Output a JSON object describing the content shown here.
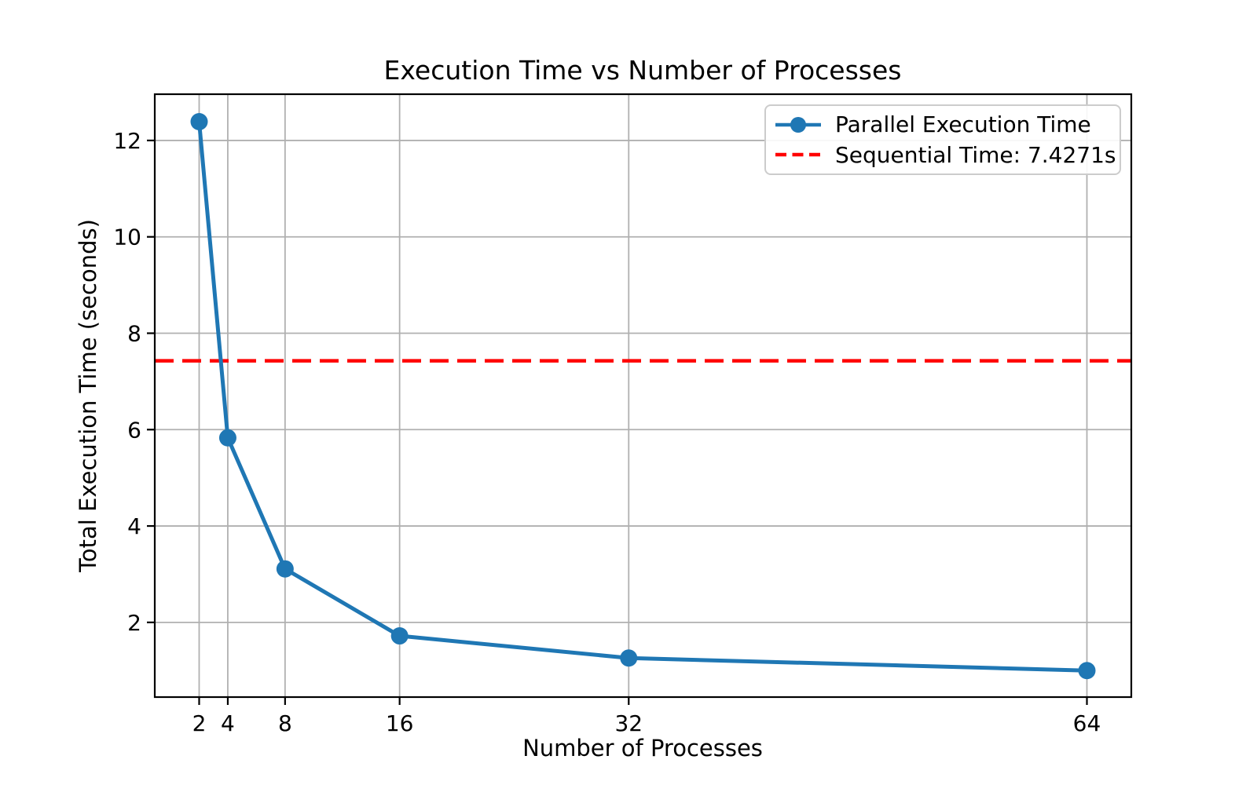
{
  "chart_data": {
    "type": "line",
    "title": "Execution Time vs Number of Processes",
    "xlabel": "Number of Processes",
    "ylabel": "Total Execution Time (seconds)",
    "x": [
      2,
      4,
      8,
      16,
      32,
      64
    ],
    "series": [
      {
        "name": "Parallel Execution Time",
        "color": "#1f77b4",
        "marker": "circle",
        "values": [
          12.39,
          5.83,
          3.11,
          1.72,
          1.26,
          1.0
        ]
      }
    ],
    "reference_line": {
      "label": "Sequential Time: 7.4271s",
      "value": 7.4271,
      "color": "#ff0000",
      "style": "dashed"
    },
    "xticks": [
      2,
      4,
      8,
      16,
      32,
      64
    ],
    "yticks": [
      2,
      4,
      6,
      8,
      10,
      12
    ],
    "xlim": [
      -1.1,
      67.1
    ],
    "ylim": [
      0.45,
      12.96
    ],
    "grid": true,
    "grid_color": "#b0b0b0",
    "legend_position": "upper right"
  }
}
